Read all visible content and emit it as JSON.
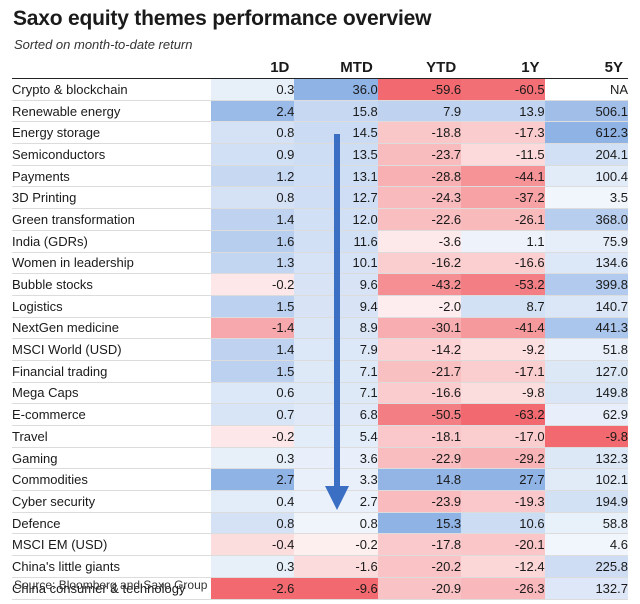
{
  "chart_data": {
    "type": "table",
    "title": "Saxo equity themes performance overview",
    "subtitle": "Sorted on month-to-date return",
    "source": "Source: Bloomberg and Saxo Group",
    "columns": [
      "1D",
      "MTD",
      "YTD",
      "1Y",
      "5Y"
    ],
    "rows": [
      {
        "name": "Crypto & blockchain",
        "values": [
          "0.3",
          "36.0",
          "-59.6",
          "-60.5",
          "NA"
        ]
      },
      {
        "name": "Renewable energy",
        "values": [
          "2.4",
          "15.8",
          "7.9",
          "13.9",
          "506.1"
        ]
      },
      {
        "name": "Energy storage",
        "values": [
          "0.8",
          "14.5",
          "-18.8",
          "-17.3",
          "612.3"
        ]
      },
      {
        "name": "Semiconductors",
        "values": [
          "0.9",
          "13.5",
          "-23.7",
          "-11.5",
          "204.1"
        ]
      },
      {
        "name": "Payments",
        "values": [
          "1.2",
          "13.1",
          "-28.8",
          "-44.1",
          "100.4"
        ]
      },
      {
        "name": "3D Printing",
        "values": [
          "0.8",
          "12.7",
          "-24.3",
          "-37.2",
          "3.5"
        ]
      },
      {
        "name": "Green transformation",
        "values": [
          "1.4",
          "12.0",
          "-22.6",
          "-26.1",
          "368.0"
        ]
      },
      {
        "name": "India (GDRs)",
        "values": [
          "1.6",
          "11.6",
          "-3.6",
          "1.1",
          "75.9"
        ]
      },
      {
        "name": "Women in leadership",
        "values": [
          "1.3",
          "10.1",
          "-16.2",
          "-16.6",
          "134.6"
        ]
      },
      {
        "name": "Bubble stocks",
        "values": [
          "-0.2",
          "9.6",
          "-43.2",
          "-53.2",
          "399.8"
        ]
      },
      {
        "name": "Logistics",
        "values": [
          "1.5",
          "9.4",
          "-2.0",
          "8.7",
          "140.7"
        ]
      },
      {
        "name": "NextGen medicine",
        "values": [
          "-1.4",
          "8.9",
          "-30.1",
          "-41.4",
          "441.3"
        ]
      },
      {
        "name": "MSCI World (USD)",
        "values": [
          "1.4",
          "7.9",
          "-14.2",
          "-9.2",
          "51.8"
        ]
      },
      {
        "name": "Financial trading",
        "values": [
          "1.5",
          "7.1",
          "-21.7",
          "-17.1",
          "127.0"
        ]
      },
      {
        "name": "Mega Caps",
        "values": [
          "0.6",
          "7.1",
          "-16.6",
          "-9.8",
          "149.8"
        ]
      },
      {
        "name": "E-commerce",
        "values": [
          "0.7",
          "6.8",
          "-50.5",
          "-63.2",
          "62.9"
        ]
      },
      {
        "name": "Travel",
        "values": [
          "-0.2",
          "5.4",
          "-18.1",
          "-17.0",
          "-9.8"
        ]
      },
      {
        "name": "Gaming",
        "values": [
          "0.3",
          "3.6",
          "-22.9",
          "-29.2",
          "132.3"
        ]
      },
      {
        "name": "Commodities",
        "values": [
          "2.7",
          "3.3",
          "14.8",
          "27.7",
          "102.1"
        ]
      },
      {
        "name": "Cyber security",
        "values": [
          "0.4",
          "2.7",
          "-23.9",
          "-19.3",
          "194.9"
        ]
      },
      {
        "name": "Defence",
        "values": [
          "0.8",
          "0.8",
          "15.3",
          "10.6",
          "58.8"
        ]
      },
      {
        "name": "MSCI EM (USD)",
        "values": [
          "-0.4",
          "-0.2",
          "-17.8",
          "-20.1",
          "4.6"
        ]
      },
      {
        "name": "China's little giants",
        "values": [
          "0.3",
          "-1.6",
          "-20.2",
          "-12.4",
          "225.8"
        ]
      },
      {
        "name": "China consumer & technology",
        "values": [
          "-2.6",
          "-9.6",
          "-20.9",
          "-26.3",
          "132.7"
        ]
      }
    ],
    "colors": {
      "positive": "#5b8fd9",
      "negative": "#f0595f",
      "neutral": "#ffffff"
    }
  }
}
